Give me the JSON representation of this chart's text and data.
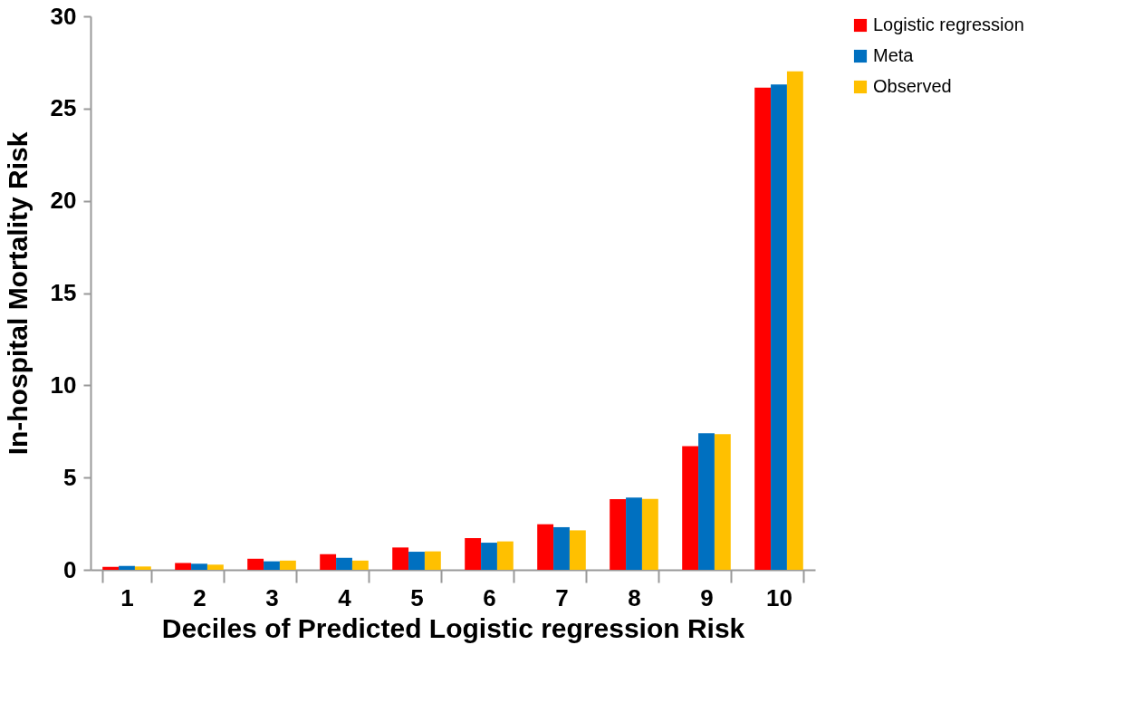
{
  "chart_data": {
    "type": "bar",
    "xlabel": "Deciles of Predicted Logistic regression Risk",
    "ylabel": "In-hospital Mortality Risk",
    "categories": [
      "1",
      "2",
      "3",
      "4",
      "5",
      "6",
      "7",
      "8",
      "9",
      "10"
    ],
    "series": [
      {
        "name": "Logistic regression",
        "color": "#ff0000",
        "values": [
          0.16,
          0.37,
          0.6,
          0.85,
          1.21,
          1.72,
          2.47,
          3.83,
          6.7,
          26.13
        ]
      },
      {
        "name": "Meta",
        "color": "#0070c0",
        "values": [
          0.21,
          0.33,
          0.46,
          0.65,
          0.98,
          1.47,
          2.31,
          3.91,
          7.4,
          26.31
        ]
      },
      {
        "name": "Observed",
        "color": "#ffc000",
        "values": [
          0.18,
          0.28,
          0.5,
          0.5,
          1.0,
          1.54,
          2.14,
          3.84,
          7.35,
          27.02
        ]
      }
    ],
    "ylim": [
      0,
      30
    ],
    "yticks": [
      0,
      5,
      10,
      15,
      20,
      25,
      30
    ],
    "grid": false,
    "legend": "right"
  }
}
